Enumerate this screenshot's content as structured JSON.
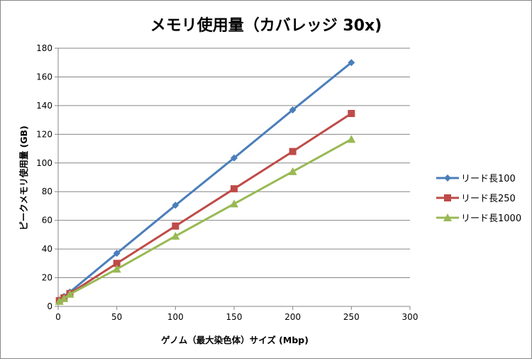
{
  "chart_data": {
    "type": "line",
    "title": "メモリ使用量（カバレッジ 30x)",
    "xlabel": "ゲノム（最大染色体）サイズ (Mbp)",
    "ylabel": "ピークメモリ使用量 (GB)",
    "xlim": [
      0,
      300
    ],
    "ylim": [
      0,
      180
    ],
    "xticks": [
      0,
      50,
      100,
      150,
      200,
      250,
      300
    ],
    "yticks": [
      0,
      20,
      40,
      60,
      80,
      100,
      120,
      140,
      160,
      180
    ],
    "grid": true,
    "legend": "right",
    "x": [
      1,
      5,
      10,
      50,
      100,
      150,
      200,
      250
    ],
    "series": [
      {
        "name": "リード長100",
        "color": "#4A7EBB",
        "marker": "diamond",
        "values": [
          4.5,
          7,
          10,
          37,
          70.5,
          103.5,
          137,
          170
        ]
      },
      {
        "name": "リード長250",
        "color": "#BE4B48",
        "marker": "square",
        "values": [
          4,
          6,
          9,
          30,
          56,
          82,
          108,
          134.5
        ]
      },
      {
        "name": "リード長1000",
        "color": "#98B954",
        "marker": "triangle",
        "values": [
          3.5,
          5.5,
          8.5,
          26,
          49,
          71.5,
          94,
          116.5
        ]
      }
    ]
  }
}
